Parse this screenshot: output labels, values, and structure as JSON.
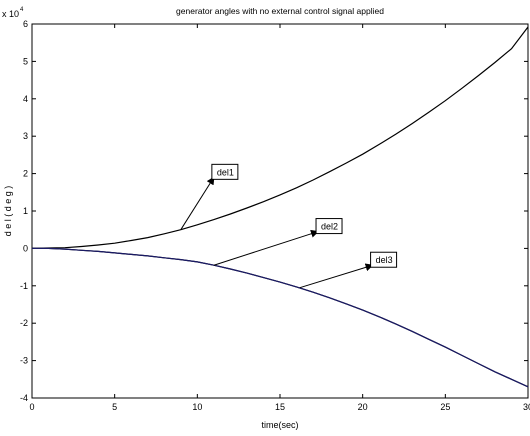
{
  "chart_data": {
    "type": "line",
    "title": "generator angles with no external control signal applied",
    "xlabel": "time(sec)",
    "ylabel": "d e l ( d e g )",
    "y_scale_prefix": "x 10",
    "y_scale_exponent": "4",
    "xlim": [
      0,
      30
    ],
    "ylim": [
      -4,
      6
    ],
    "x_ticks": [
      0,
      5,
      10,
      15,
      20,
      25,
      30
    ],
    "y_ticks": [
      -4,
      -3,
      -2,
      -1,
      0,
      1,
      2,
      3,
      4,
      5,
      6
    ],
    "grid": false,
    "series": [
      {
        "name": "del1",
        "color": "#000000",
        "x": [
          0,
          1,
          2,
          3,
          4,
          5,
          6,
          7,
          8,
          9,
          10,
          11,
          12,
          13,
          14,
          15,
          16,
          17,
          18,
          19,
          20,
          21,
          22,
          23,
          24,
          25,
          26,
          27,
          28,
          29,
          30
        ],
        "y": [
          0,
          0.01,
          0.02,
          0.05,
          0.09,
          0.14,
          0.21,
          0.29,
          0.39,
          0.5,
          0.63,
          0.77,
          0.92,
          1.08,
          1.25,
          1.43,
          1.62,
          1.83,
          2.05,
          2.28,
          2.52,
          2.78,
          3.05,
          3.34,
          3.64,
          3.95,
          4.28,
          4.62,
          4.97,
          5.34,
          5.92
        ]
      },
      {
        "name": "del2",
        "color": "#000000",
        "x": [
          0,
          1,
          2,
          3,
          4,
          5,
          6,
          7,
          8,
          9,
          10,
          11,
          12,
          13,
          14,
          15,
          16,
          17,
          18,
          19,
          20,
          21,
          22,
          23,
          24,
          25,
          26,
          27,
          28,
          29,
          30
        ],
        "y": [
          0,
          0.0,
          -0.02,
          -0.05,
          -0.08,
          -0.12,
          -0.16,
          -0.2,
          -0.25,
          -0.3,
          -0.36,
          -0.45,
          -0.55,
          -0.66,
          -0.78,
          -0.9,
          -1.03,
          -1.17,
          -1.32,
          -1.48,
          -1.65,
          -1.83,
          -2.02,
          -2.22,
          -2.43,
          -2.64,
          -2.86,
          -3.08,
          -3.3,
          -3.5,
          -3.7
        ]
      },
      {
        "name": "del3",
        "color": "#1a1a66",
        "x": [
          0,
          1,
          2,
          3,
          4,
          5,
          6,
          7,
          8,
          9,
          10,
          11,
          12,
          13,
          14,
          15,
          16,
          17,
          18,
          19,
          20,
          21,
          22,
          23,
          24,
          25,
          26,
          27,
          28,
          29,
          30
        ],
        "y": [
          0,
          0.0,
          -0.02,
          -0.05,
          -0.08,
          -0.12,
          -0.16,
          -0.2,
          -0.25,
          -0.3,
          -0.36,
          -0.45,
          -0.55,
          -0.66,
          -0.78,
          -0.9,
          -1.03,
          -1.17,
          -1.32,
          -1.48,
          -1.65,
          -1.83,
          -2.02,
          -2.22,
          -2.43,
          -2.64,
          -2.86,
          -3.08,
          -3.3,
          -3.5,
          -3.7
        ]
      }
    ],
    "annotations": [
      {
        "text": "del1",
        "arrow_from": [
          9,
          0.5
        ],
        "arrow_to": [
          11,
          1.9
        ]
      },
      {
        "text": "del2",
        "arrow_from": [
          11,
          -0.45
        ],
        "arrow_to": [
          17.3,
          0.45
        ]
      },
      {
        "text": "del3",
        "arrow_from": [
          16.2,
          -1.05
        ],
        "arrow_to": [
          20.6,
          -0.45
        ]
      }
    ]
  }
}
